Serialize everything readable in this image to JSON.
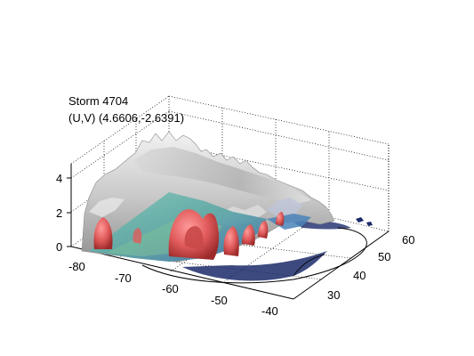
{
  "chart_data": {
    "type": "surface-3d",
    "title_lines": [
      "Storm 4704",
      "(U,V) (4.6606,-2.6391)"
    ],
    "x_ticks": [
      "-80",
      "-70",
      "-60",
      "-50",
      "-40"
    ],
    "y_ticks": [
      "30",
      "40",
      "50",
      "60"
    ],
    "z_ticks": [
      "0",
      "2",
      "4"
    ],
    "xlim": [
      -82,
      -38
    ],
    "ylim": [
      25,
      62
    ],
    "zlim": [
      0,
      5
    ],
    "grid": true,
    "colors": {
      "cloud_surface": "#c8c8c8",
      "core_surface": "#e05a5a",
      "base_cyan": "#5fb0a8",
      "base_blue": "#2b3a8c",
      "track_line": "#000000"
    }
  }
}
